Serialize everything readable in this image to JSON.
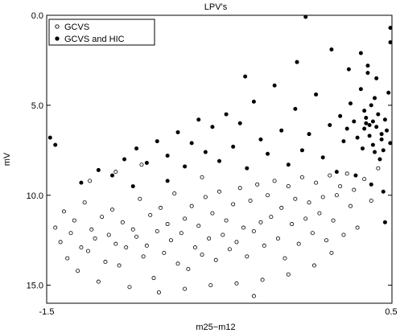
{
  "chart_data": {
    "type": "scatter",
    "title": "LPV's",
    "xlabel": "m25−m12",
    "ylabel": "mV",
    "xlim": [
      -1.5,
      0.5
    ],
    "ylim": [
      0.0,
      16.0
    ],
    "y_inverted": true,
    "x_ticks": [
      "-1.5",
      "0.5"
    ],
    "y_ticks": [
      "0.0",
      "5.0",
      "10.0",
      "15.0"
    ],
    "legend_position": "top-left",
    "series": [
      {
        "name": "GCVS",
        "marker": "open-circle",
        "color": "#000000",
        "points": [
          [
            -1.45,
            11.8
          ],
          [
            -1.42,
            12.6
          ],
          [
            -1.4,
            10.9
          ],
          [
            -1.38,
            13.5
          ],
          [
            -1.36,
            12.1
          ],
          [
            -1.34,
            11.4
          ],
          [
            -1.32,
            14.2
          ],
          [
            -1.3,
            12.9
          ],
          [
            -1.28,
            10.4
          ],
          [
            -1.26,
            13.1
          ],
          [
            -1.24,
            11.9
          ],
          [
            -1.22,
            12.4
          ],
          [
            -1.2,
            14.8
          ],
          [
            -1.18,
            11.2
          ],
          [
            -1.16,
            13.7
          ],
          [
            -1.14,
            12.2
          ],
          [
            -1.12,
            10.8
          ],
          [
            -1.1,
            12.7
          ],
          [
            -1.08,
            13.9
          ],
          [
            -1.06,
            11.5
          ],
          [
            -1.04,
            12.9
          ],
          [
            -1.02,
            15.1
          ],
          [
            -1.0,
            11.9
          ],
          [
            -0.98,
            12.3
          ],
          [
            -0.96,
            10.2
          ],
          [
            -0.94,
            13.4
          ],
          [
            -0.92,
            12.8
          ],
          [
            -0.9,
            11.1
          ],
          [
            -0.88,
            14.6
          ],
          [
            -0.86,
            12.0
          ],
          [
            -0.84,
            10.7
          ],
          [
            -0.82,
            13.2
          ],
          [
            -0.8,
            11.6
          ],
          [
            -0.78,
            12.5
          ],
          [
            -0.76,
            9.9
          ],
          [
            -0.74,
            13.8
          ],
          [
            -0.72,
            12.1
          ],
          [
            -0.7,
            11.3
          ],
          [
            -0.68,
            14.1
          ],
          [
            -0.66,
            10.6
          ],
          [
            -0.64,
            12.9
          ],
          [
            -0.62,
            11.7
          ],
          [
            -0.6,
            13.3
          ],
          [
            -0.58,
            10.1
          ],
          [
            -0.56,
            12.4
          ],
          [
            -0.54,
            11.0
          ],
          [
            -0.52,
            13.6
          ],
          [
            -0.5,
            9.8
          ],
          [
            -0.48,
            12.2
          ],
          [
            -0.46,
            11.4
          ],
          [
            -0.44,
            13.0
          ],
          [
            -0.42,
            10.5
          ],
          [
            -0.4,
            12.6
          ],
          [
            -0.38,
            9.6
          ],
          [
            -0.36,
            11.8
          ],
          [
            -0.34,
            13.4
          ],
          [
            -0.32,
            10.3
          ],
          [
            -0.3,
            12.0
          ],
          [
            -0.28,
            9.4
          ],
          [
            -0.26,
            11.5
          ],
          [
            -0.24,
            12.8
          ],
          [
            -0.22,
            10.0
          ],
          [
            -0.2,
            11.2
          ],
          [
            -0.18,
            9.2
          ],
          [
            -0.16,
            12.4
          ],
          [
            -0.14,
            10.7
          ],
          [
            -0.12,
            13.5
          ],
          [
            -0.1,
            9.5
          ],
          [
            -0.08,
            11.6
          ],
          [
            -0.06,
            10.2
          ],
          [
            -0.04,
            12.7
          ],
          [
            -0.02,
            9.0
          ],
          [
            0.0,
            11.3
          ],
          [
            0.02,
            10.4
          ],
          [
            0.04,
            12.1
          ],
          [
            0.06,
            9.3
          ],
          [
            0.08,
            11.0
          ],
          [
            0.1,
            10.1
          ],
          [
            0.12,
            12.5
          ],
          [
            0.14,
            8.9
          ],
          [
            0.16,
            11.4
          ],
          [
            0.18,
            10.0
          ],
          [
            0.2,
            9.5
          ],
          [
            0.22,
            12.2
          ],
          [
            0.24,
            8.8
          ],
          [
            0.26,
            10.6
          ],
          [
            0.28,
            9.7
          ],
          [
            0.3,
            11.8
          ],
          [
            0.34,
            9.1
          ],
          [
            0.38,
            10.3
          ],
          [
            0.42,
            8.5
          ],
          [
            -1.25,
            9.2
          ],
          [
            -1.1,
            8.7
          ],
          [
            -0.95,
            8.3
          ],
          [
            -0.85,
            15.4
          ],
          [
            -0.7,
            15.2
          ],
          [
            -0.55,
            15.0
          ],
          [
            -0.4,
            14.9
          ],
          [
            -0.25,
            14.7
          ],
          [
            -0.1,
            14.4
          ],
          [
            0.05,
            13.9
          ],
          [
            0.15,
            13.2
          ],
          [
            -0.3,
            15.6
          ],
          [
            -0.6,
            9.0
          ]
        ]
      },
      {
        "name": "GCVS and HIC",
        "marker": "filled-circle",
        "color": "#000000",
        "points": [
          [
            -1.48,
            6.8
          ],
          [
            -1.45,
            7.2
          ],
          [
            -1.3,
            9.3
          ],
          [
            -1.2,
            8.6
          ],
          [
            -1.12,
            8.9
          ],
          [
            -1.05,
            8.0
          ],
          [
            -0.98,
            7.4
          ],
          [
            -0.92,
            8.2
          ],
          [
            -0.86,
            7.0
          ],
          [
            -0.8,
            7.8
          ],
          [
            -0.74,
            6.5
          ],
          [
            -0.7,
            8.4
          ],
          [
            -0.66,
            7.1
          ],
          [
            -0.62,
            5.8
          ],
          [
            -0.58,
            7.6
          ],
          [
            -0.54,
            6.2
          ],
          [
            -0.5,
            8.1
          ],
          [
            -0.46,
            5.5
          ],
          [
            -0.42,
            7.3
          ],
          [
            -0.38,
            6.0
          ],
          [
            -0.34,
            8.5
          ],
          [
            -0.3,
            4.8
          ],
          [
            -0.26,
            6.9
          ],
          [
            -0.22,
            7.7
          ],
          [
            -0.18,
            3.9
          ],
          [
            -0.14,
            6.4
          ],
          [
            -0.1,
            8.3
          ],
          [
            -0.06,
            5.2
          ],
          [
            -0.02,
            7.5
          ],
          [
            0.02,
            6.6
          ],
          [
            0.06,
            4.4
          ],
          [
            0.1,
            7.9
          ],
          [
            0.14,
            6.1
          ],
          [
            0.18,
            8.7
          ],
          [
            0.2,
            5.6
          ],
          [
            0.22,
            7.0
          ],
          [
            0.24,
            6.3
          ],
          [
            0.26,
            4.9
          ],
          [
            0.28,
            5.9
          ],
          [
            0.3,
            6.8
          ],
          [
            0.32,
            4.1
          ],
          [
            0.33,
            7.4
          ],
          [
            0.34,
            5.3
          ],
          [
            0.35,
            6.0
          ],
          [
            0.36,
            3.2
          ],
          [
            0.37,
            6.7
          ],
          [
            0.38,
            5.0
          ],
          [
            0.39,
            7.2
          ],
          [
            0.4,
            4.6
          ],
          [
            0.41,
            6.2
          ],
          [
            0.42,
            5.5
          ],
          [
            0.43,
            8.0
          ],
          [
            0.44,
            6.9
          ],
          [
            0.45,
            7.5
          ],
          [
            0.46,
            5.8
          ],
          [
            0.47,
            6.4
          ],
          [
            0.48,
            4.3
          ],
          [
            0.49,
            7.1
          ],
          [
            0.5,
            0.7
          ],
          [
            0.32,
            2.1
          ],
          [
            0.36,
            2.8
          ],
          [
            0.41,
            3.5
          ],
          [
            0.0,
            0.0
          ],
          [
            -0.05,
            2.6
          ],
          [
            -0.35,
            3.4
          ],
          [
            0.15,
            1.9
          ],
          [
            0.25,
            3.0
          ],
          [
            0.29,
            8.9
          ],
          [
            0.38,
            9.4
          ],
          [
            0.45,
            9.8
          ],
          [
            -0.8,
            9.2
          ],
          [
            -1.0,
            9.5
          ],
          [
            0.46,
            11.5
          ],
          [
            0.53,
            1.5
          ],
          [
            0.35,
            5.7
          ],
          [
            0.37,
            6.1
          ],
          [
            0.39,
            5.9
          ],
          [
            0.44,
            6.6
          ],
          [
            0.34,
            6.3
          ],
          [
            0.4,
            7.6
          ]
        ]
      }
    ]
  }
}
